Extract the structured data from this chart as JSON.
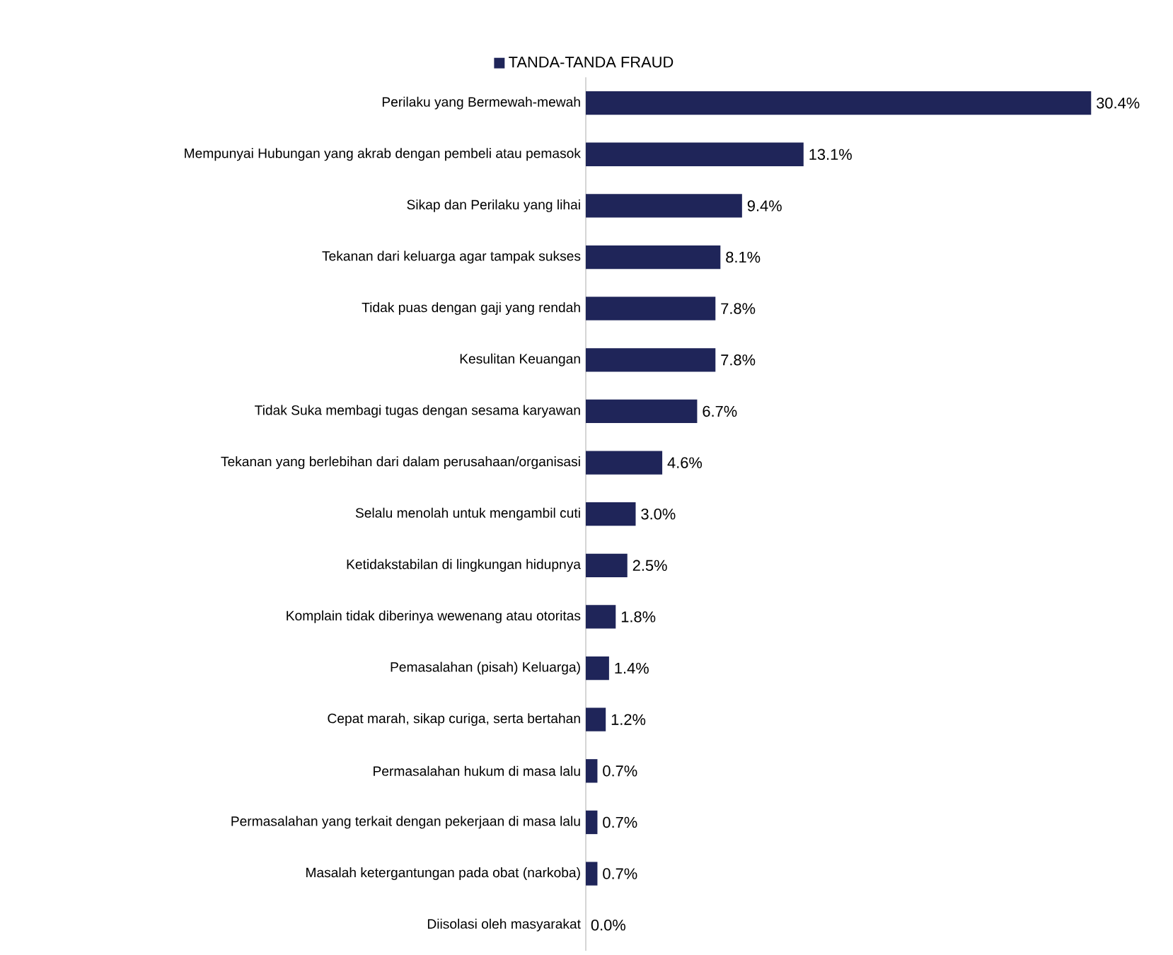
{
  "chart_data": {
    "type": "bar",
    "orientation": "horizontal",
    "legend": "top",
    "tick_labels": "y",
    "categories": [
      "Perilaku yang Bermewah-mewah",
      "Mempunyai Hubungan yang akrab dengan pembeli atau pemasok",
      "Sikap dan Perilaku yang lihai",
      "Tekanan dari keluarga agar tampak sukses",
      "Tidak puas dengan gaji yang rendah",
      "Kesulitan Keuangan",
      "Tidak Suka membagi tugas dengan sesama karyawan",
      "Tekanan yang berlebihan dari dalam perusahaan/organisasi",
      "Selalu menolah untuk mengambil cuti",
      "Ketidakstabilan di lingkungan hidupnya",
      "Komplain tidak diberinya wewenang atau otoritas",
      "Pemasalahan (pisah) Keluarga)",
      "Cepat marah, sikap curiga, serta bertahan",
      "Permasalahan hukum di masa lalu",
      "Permasalahan yang terkait dengan pekerjaan di masa lalu",
      "Masalah ketergantungan pada obat (narkoba)",
      "Diisolasi oleh masyarakat"
    ],
    "series": [
      {
        "name": "TANDA-TANDA FRAUD",
        "color": "#1f2559",
        "values": [
          30.4,
          13.1,
          9.4,
          8.1,
          7.8,
          7.8,
          6.7,
          4.6,
          3.0,
          2.5,
          1.8,
          1.4,
          1.2,
          0.7,
          0.7,
          0.7,
          0.0
        ],
        "value_labels": [
          "30.4%",
          "13.1%",
          "9.4%",
          "8.1%",
          "7.8%",
          "7.8%",
          "6.7%",
          "4.6%",
          "3.0%",
          "2.5%",
          "1.8%",
          "1.4%",
          "1.2%",
          "0.7%",
          "0.7%",
          "0.7%",
          "0.0%"
        ]
      }
    ]
  }
}
